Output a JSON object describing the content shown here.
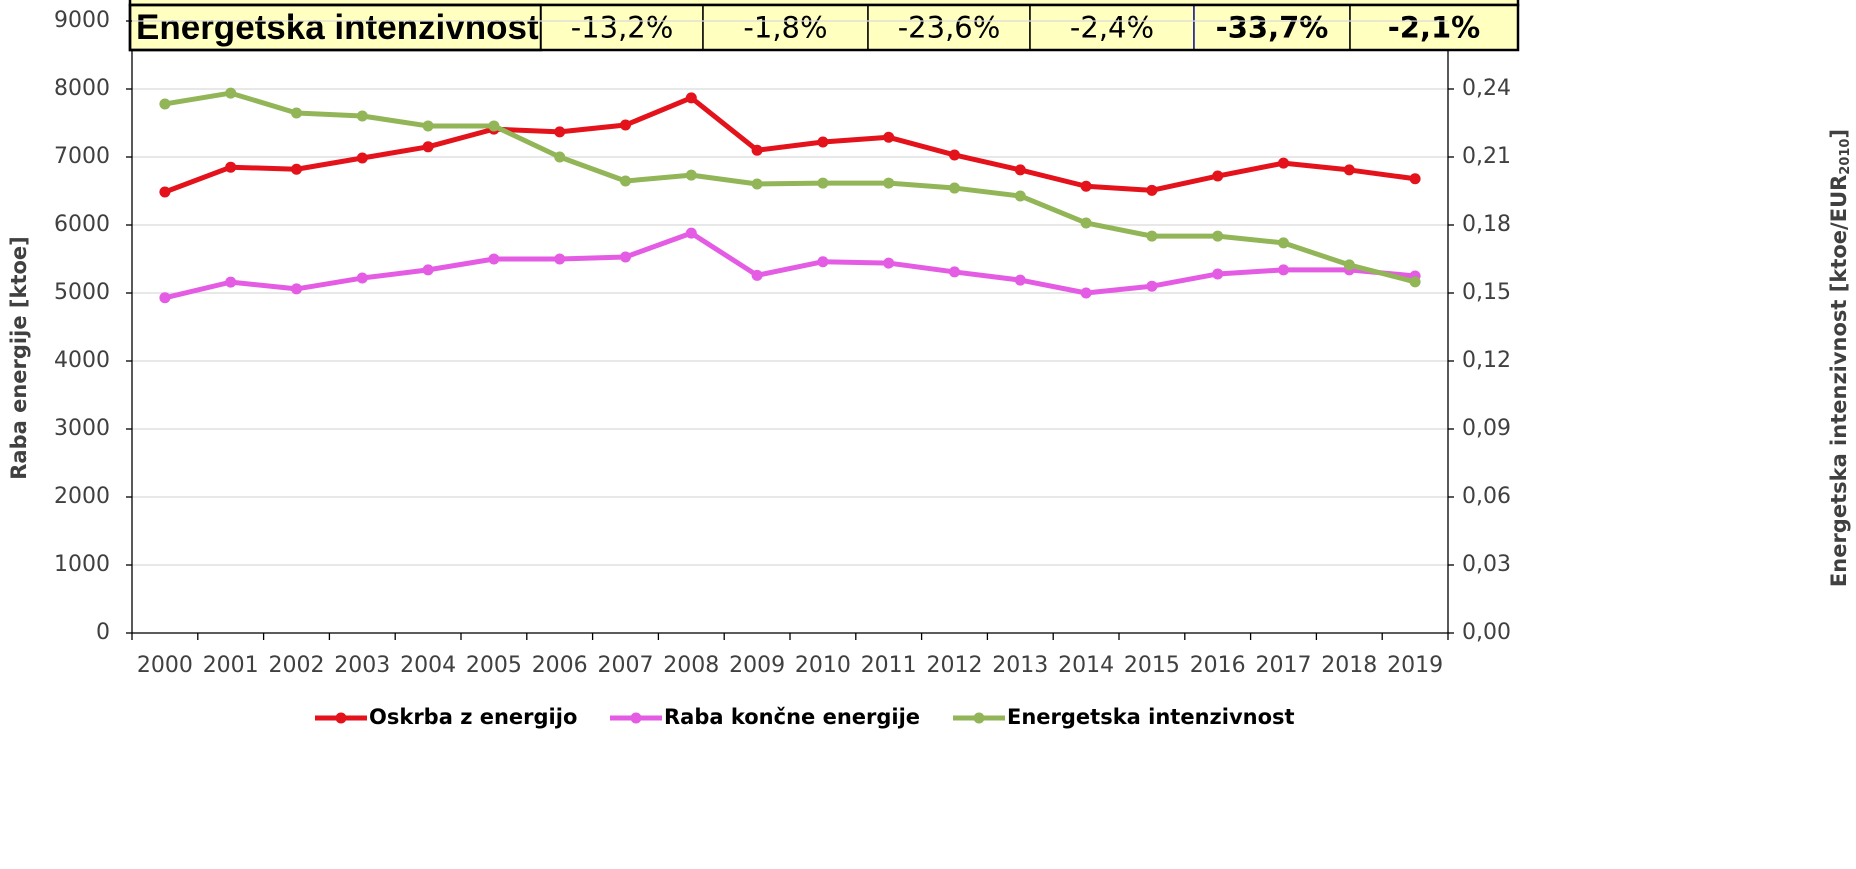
{
  "chart_data": {
    "type": "line",
    "ylabel": "Raba energije [ktoe]",
    "y2label": [
      "Energetska intenzivnost [ktoe/EUR",
      "2010",
      "]"
    ],
    "categories": [
      "2000",
      "2001",
      "2002",
      "2003",
      "2004",
      "2005",
      "2006",
      "2007",
      "2008",
      "2009",
      "2010",
      "2011",
      "2012",
      "2013",
      "2014",
      "2015",
      "2016",
      "2017",
      "2018",
      "2019"
    ],
    "series": [
      {
        "name": "Oskrba z energijo",
        "color": "#e3121b",
        "values": [
          6485,
          6850,
          6820,
          6985,
          7150,
          7410,
          7370,
          7470,
          7870,
          7100,
          7220,
          7290,
          7030,
          6810,
          6570,
          6510,
          6720,
          6910,
          6810,
          6680
        ]
      },
      {
        "name": "Raba končne energije",
        "color": "#e45be4",
        "values": [
          4930,
          5160,
          5060,
          5220,
          5340,
          5500,
          5500,
          5530,
          5880,
          5260,
          5460,
          5440,
          5310,
          5190,
          5000,
          5100,
          5280,
          5340,
          5340,
          5250
        ]
      },
      {
        "name": "Energetska intenzivnost",
        "color": "#92b558",
        "axis": "y2",
        "values": [
          0.2334,
          0.2382,
          0.2294,
          0.2281,
          0.2237,
          0.2237,
          0.21,
          0.1994,
          0.202,
          0.1981,
          0.1985,
          0.1985,
          0.1963,
          0.1928,
          0.1809,
          0.1751,
          0.1751,
          0.1721,
          0.1624,
          0.1549
        ]
      }
    ],
    "ylim": [
      0,
      9000
    ],
    "yticks": [
      0,
      1000,
      2000,
      3000,
      4000,
      5000,
      6000,
      7000,
      8000,
      9000
    ],
    "y2lim": [
      0,
      0.27
    ],
    "y2ticks": [
      {
        "value": 0,
        "label": "0,00"
      },
      {
        "value": 0.03,
        "label": "0,03"
      },
      {
        "value": 0.06,
        "label": "0,06"
      },
      {
        "value": 0.09,
        "label": "0,09"
      },
      {
        "value": 0.12,
        "label": "0,12"
      },
      {
        "value": 0.15,
        "label": "0,15"
      },
      {
        "value": 0.18,
        "label": "0,18"
      },
      {
        "value": 0.21,
        "label": "0,21"
      },
      {
        "value": 0.24,
        "label": "0,24"
      }
    ],
    "grid": true,
    "legend": "bottom"
  },
  "table": {
    "rows": [
      [
        "Energetska intenzivnost",
        "-13,2%",
        "-1,8%",
        "-23,6%",
        "-2,4%",
        "-33,7%",
        "-2,1%"
      ]
    ]
  }
}
